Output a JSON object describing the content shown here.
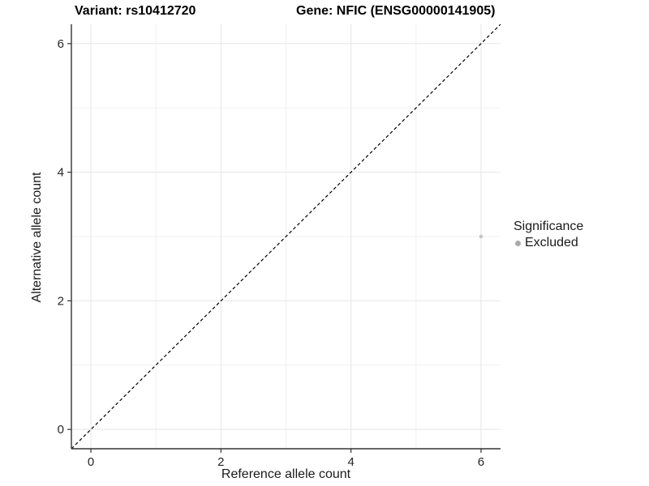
{
  "chart_data": {
    "type": "scatter",
    "title_left": "Variant: rs10412720",
    "title_right": "Gene: NFIC (ENSG00000141905)",
    "xlabel": "Reference allele count",
    "ylabel": "Alternative allele count",
    "xlim": [
      -0.3,
      6.3
    ],
    "ylim": [
      -0.3,
      6.3
    ],
    "x_ticks": [
      0,
      2,
      4,
      6
    ],
    "y_ticks": [
      0,
      2,
      4,
      6
    ],
    "x_minor": [
      1,
      3,
      5
    ],
    "y_minor": [
      1,
      3,
      5
    ],
    "grid": "major+minor",
    "abline": {
      "slope": 1,
      "intercept": 0,
      "linetype": "dashed",
      "color": "#000000"
    },
    "series": [
      {
        "name": "Excluded",
        "color": "#c4c4c4",
        "points": [
          [
            6,
            3
          ]
        ]
      }
    ],
    "legend": {
      "title": "Significance",
      "position": "right",
      "items": [
        {
          "label": "Excluded",
          "color": "#ababab"
        }
      ]
    },
    "colors": {
      "grid_major": "#e5e5e5",
      "grid_minor": "#f0f0f0",
      "axis": "#333333",
      "text": "#262626"
    }
  }
}
